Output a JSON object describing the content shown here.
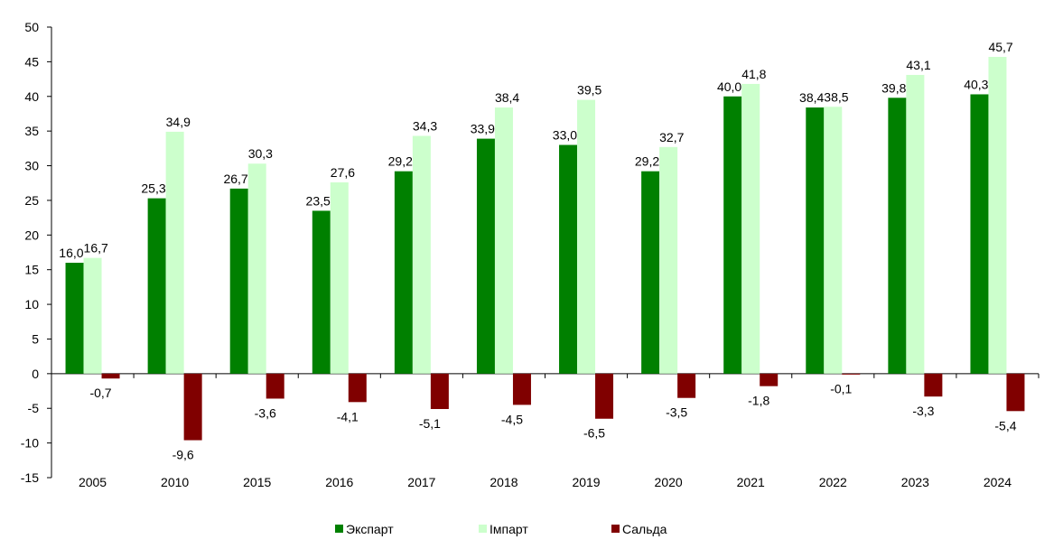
{
  "chart_data": {
    "type": "bar",
    "categories": [
      "2005",
      "2010",
      "2015",
      "2016",
      "2017",
      "2018",
      "2019",
      "2020",
      "2021",
      "2022",
      "2023",
      "2024"
    ],
    "series": [
      {
        "name": "Экспарт",
        "color": "#008000",
        "values": [
          16.0,
          25.3,
          26.7,
          23.5,
          29.2,
          33.9,
          33.0,
          29.2,
          40.0,
          38.4,
          39.8,
          40.3
        ],
        "labels": [
          "16,0",
          "25,3",
          "26,7",
          "23,5",
          "29,2",
          "33,9",
          "33,0",
          "29,2",
          "40,0",
          "38,4",
          "39,8",
          "40,3"
        ]
      },
      {
        "name": "Імпарт",
        "color": "#CCFFCC",
        "values": [
          16.7,
          34.9,
          30.3,
          27.6,
          34.3,
          38.4,
          39.5,
          32.7,
          41.8,
          38.5,
          43.1,
          45.7
        ],
        "labels": [
          "16,7",
          "34,9",
          "30,3",
          "27,6",
          "34,3",
          "38,4",
          "39,5",
          "32,7",
          "41,8",
          "38,5",
          "43,1",
          "45,7"
        ]
      },
      {
        "name": "Сальда",
        "color": "#800000",
        "values": [
          -0.7,
          -9.6,
          -3.6,
          -4.1,
          -5.1,
          -4.5,
          -6.5,
          -3.5,
          -1.8,
          -0.1,
          -3.3,
          -5.4
        ],
        "labels": [
          "-0,7",
          "-9,6",
          "-3,6",
          "-4,1",
          "-5,1",
          "-4,5",
          "-6,5",
          "-3,5",
          "-1,8",
          "-0,1",
          "-3,3",
          "-5,4"
        ]
      }
    ],
    "yticks": [
      "50",
      "45",
      "40",
      "35",
      "30",
      "25",
      "20",
      "15",
      "10",
      "5",
      "0",
      "-5",
      "-10",
      "-15"
    ],
    "ylim": [
      -15,
      50
    ],
    "grid": false,
    "legend_position": "bottom"
  }
}
